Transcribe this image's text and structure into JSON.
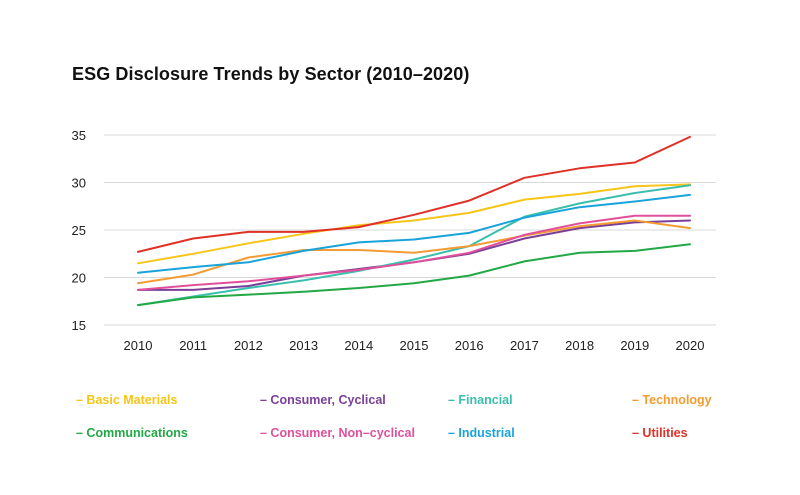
{
  "chart_data": {
    "type": "line",
    "title": "ESG Disclosure Trends by Sector (2010–2020)",
    "xlabel": "",
    "ylabel": "",
    "x": [
      "2010",
      "2011",
      "2012",
      "2013",
      "2014",
      "2015",
      "2016",
      "2017",
      "2018",
      "2019",
      "2020"
    ],
    "ylim": [
      15,
      35
    ],
    "yticks": [
      15,
      20,
      25,
      30,
      35
    ],
    "grid": true,
    "legend_position": "bottom",
    "series": [
      {
        "name": "Basic Materials",
        "color": "#F5C518",
        "values": [
          21.5,
          22.5,
          23.6,
          24.6,
          25.5,
          26.0,
          26.8,
          28.2,
          28.8,
          29.6,
          29.8
        ]
      },
      {
        "name": "Consumer, Cyclical",
        "color": "#7B3F98",
        "values": [
          18.7,
          18.7,
          19.1,
          20.2,
          20.9,
          21.6,
          22.5,
          24.1,
          25.2,
          25.8,
          26.0
        ]
      },
      {
        "name": "Financial",
        "color": "#3BBFAD",
        "values": [
          17.1,
          18.0,
          18.9,
          19.7,
          20.7,
          21.9,
          23.3,
          26.4,
          27.8,
          28.9,
          29.7
        ]
      },
      {
        "name": "Technology",
        "color": "#F39C33",
        "values": [
          19.4,
          20.3,
          22.1,
          22.9,
          22.9,
          22.6,
          23.3,
          24.4,
          25.4,
          26.0,
          25.2
        ]
      },
      {
        "name": "Communications",
        "color": "#22A844",
        "values": [
          17.1,
          17.9,
          18.2,
          18.5,
          18.9,
          19.4,
          20.2,
          21.7,
          22.6,
          22.8,
          23.5
        ]
      },
      {
        "name": "Consumer, Non-cyclical",
        "color": "#E0509A",
        "values": [
          18.7,
          19.2,
          19.6,
          20.2,
          20.8,
          21.6,
          22.6,
          24.5,
          25.7,
          26.5,
          26.5
        ]
      },
      {
        "name": "Industrial",
        "color": "#1AA3DB",
        "values": [
          20.5,
          21.1,
          21.6,
          22.8,
          23.7,
          24.0,
          24.7,
          26.3,
          27.4,
          28.0,
          28.7
        ]
      },
      {
        "name": "Utilities",
        "color": "#E03126",
        "values": [
          22.7,
          24.1,
          24.8,
          24.8,
          25.3,
          26.6,
          28.1,
          30.5,
          31.5,
          32.1,
          34.8
        ]
      }
    ],
    "legend_labels": [
      "– Basic Materials",
      "– Consumer, Cyclical",
      "– Financial",
      "– Technology",
      "– Communications",
      "– Consumer, Non–cyclical",
      "– Industrial",
      "– Utilities"
    ]
  }
}
